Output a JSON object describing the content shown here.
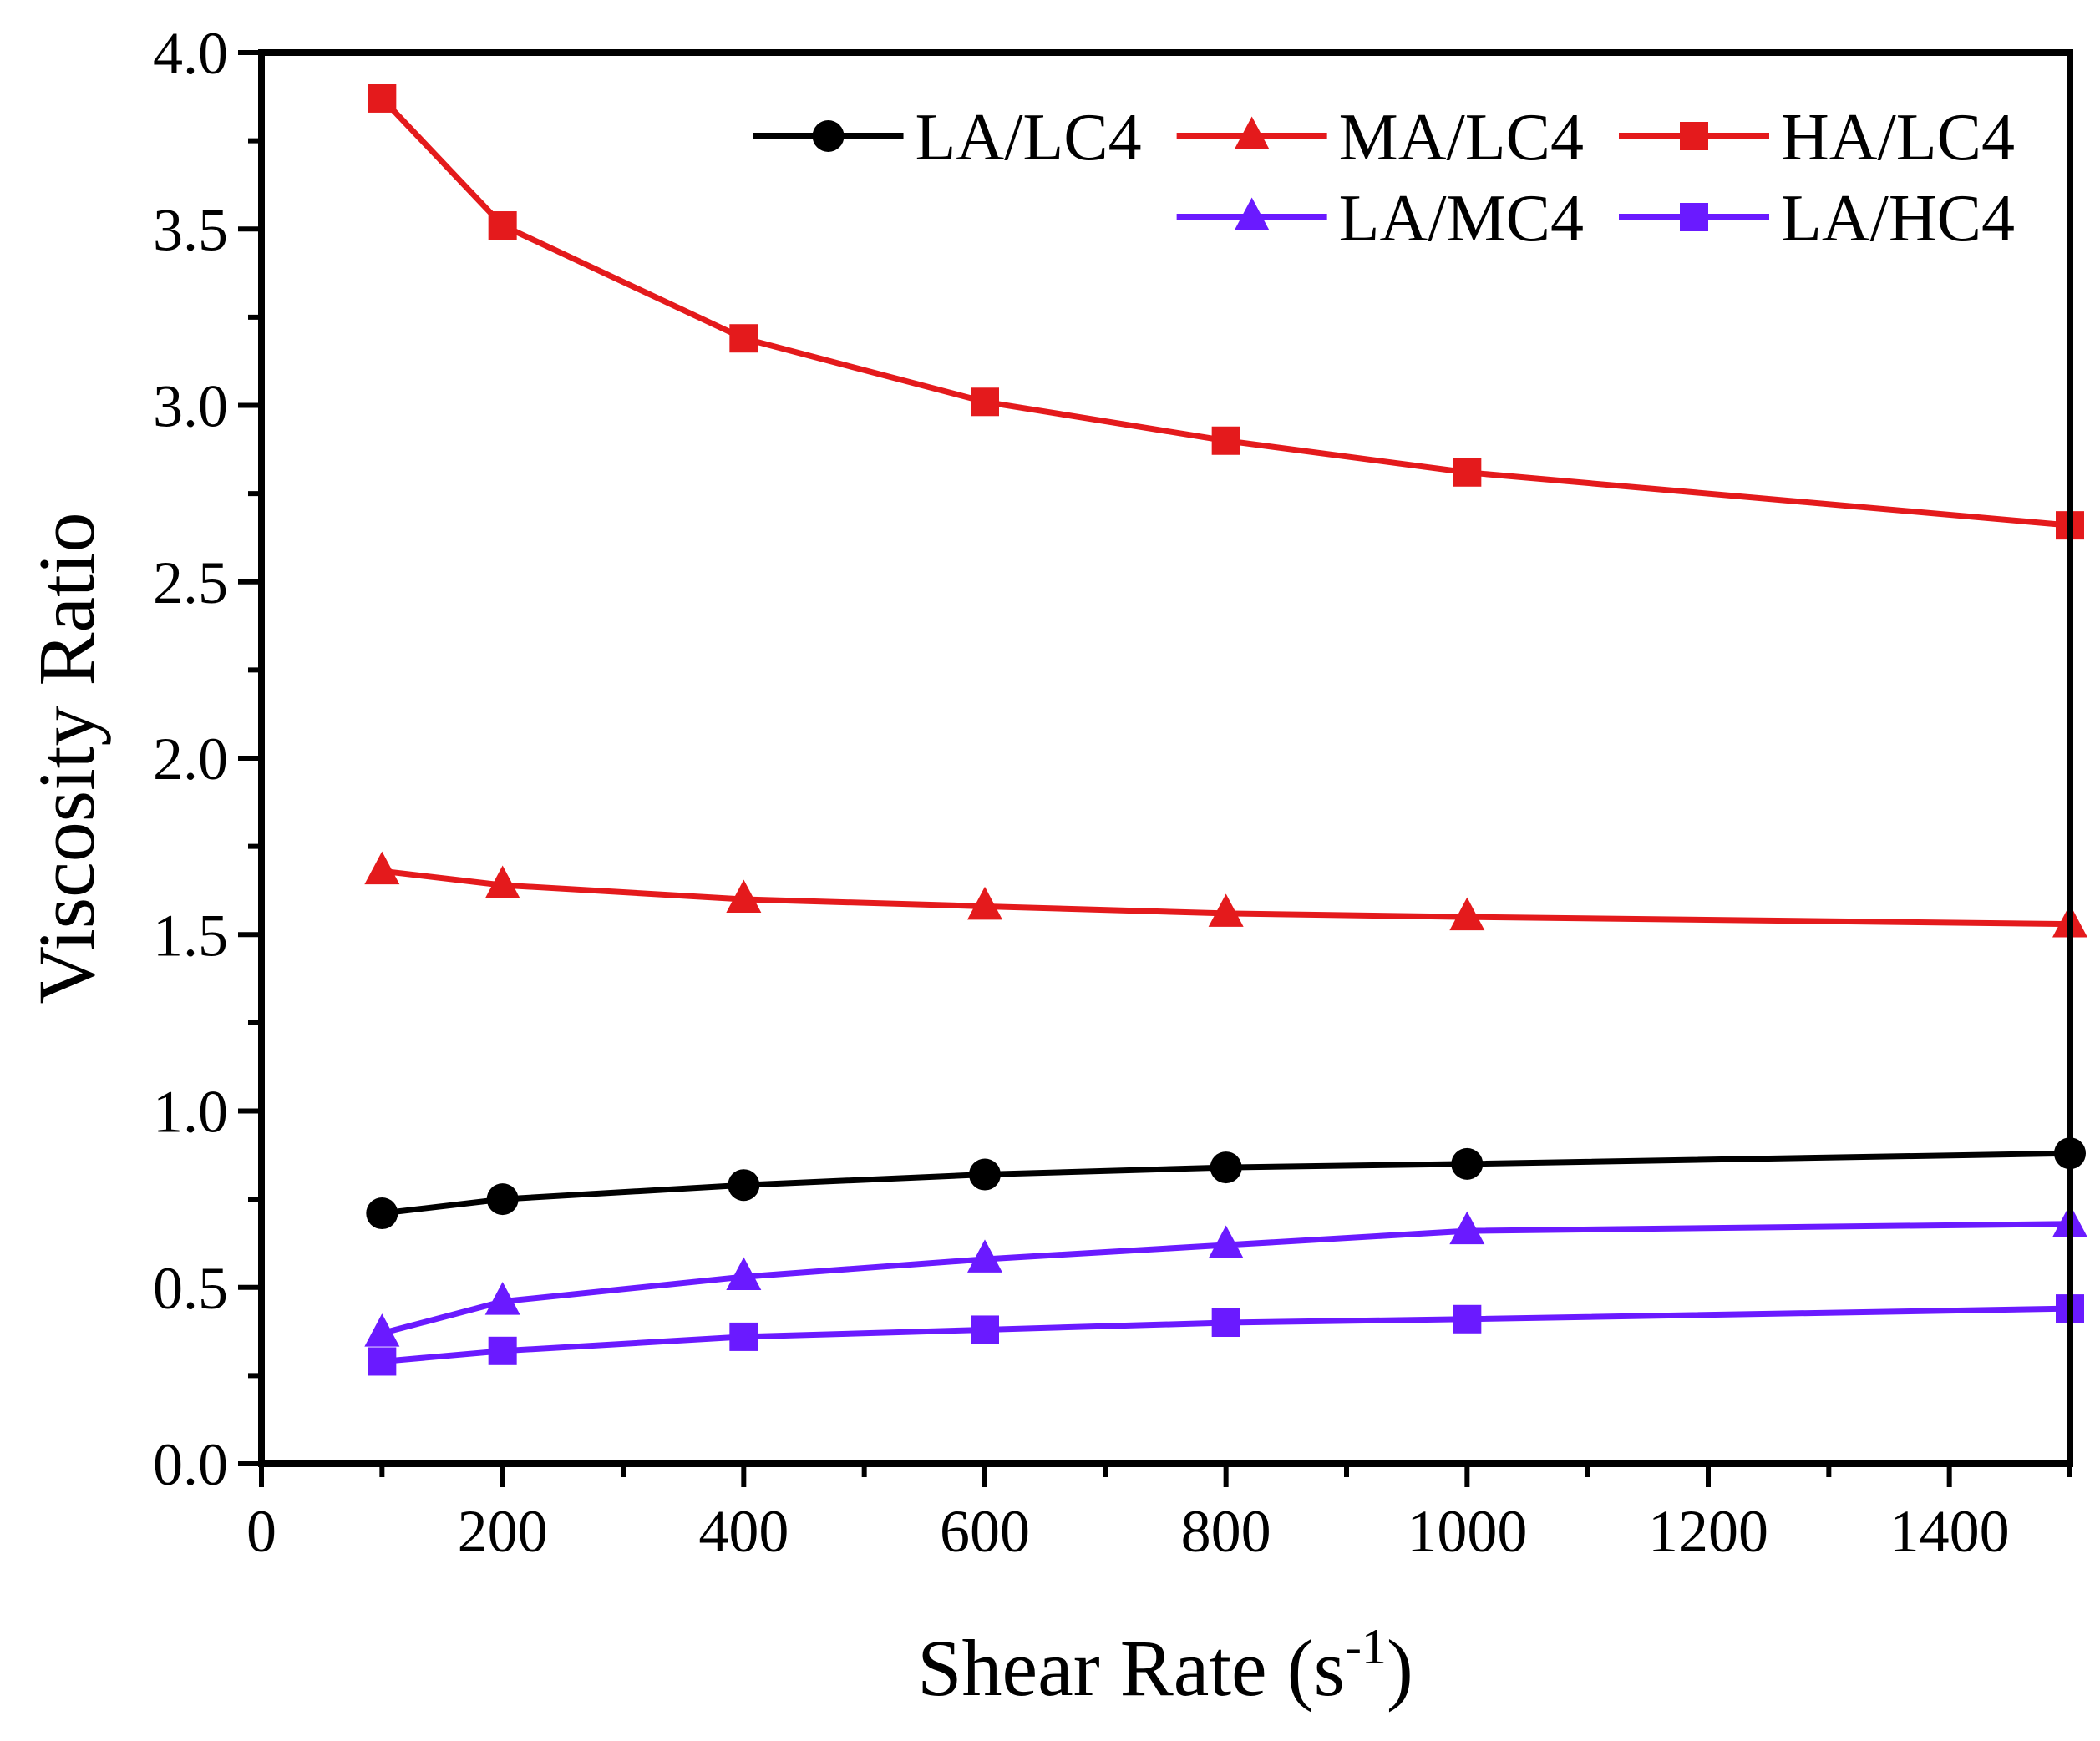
{
  "chart_data": {
    "type": "line",
    "title": "",
    "xlabel": "Shear Rate (s",
    "xlabel_sup": "-1",
    "xlabel_close": ")",
    "ylabel": "Viscosity Ratio",
    "xlim": [
      0,
      1500
    ],
    "ylim": [
      0.0,
      4.0
    ],
    "x_major_ticks": [
      0,
      200,
      400,
      600,
      800,
      1000,
      1200,
      1400
    ],
    "x_tick_labels": [
      "0",
      "200",
      "400",
      "600",
      "800",
      "1000",
      "1200",
      "1400"
    ],
    "x_minor_ticks": [
      100,
      300,
      500,
      700,
      900,
      1100,
      1300,
      1500
    ],
    "y_major_ticks": [
      0.0,
      0.5,
      1.0,
      1.5,
      2.0,
      2.5,
      3.0,
      3.5,
      4.0
    ],
    "y_tick_labels": [
      "0.0",
      "0.5",
      "1.0",
      "1.5",
      "2.0",
      "2.5",
      "3.0",
      "3.5",
      "4.0"
    ],
    "y_minor_ticks": [
      0.25,
      0.75,
      1.25,
      1.75,
      2.25,
      2.75,
      3.25,
      3.75
    ],
    "grid": false,
    "legend_position": "top-right",
    "x": [
      100,
      200,
      400,
      600,
      800,
      1000,
      1500
    ],
    "series": [
      {
        "name": "LA/LC4",
        "color": "#000000",
        "marker": "circle",
        "values": [
          0.71,
          0.75,
          0.79,
          0.82,
          0.84,
          0.85,
          0.88
        ]
      },
      {
        "name": "MA/LC4",
        "color": "#e41a1c",
        "marker": "triangle",
        "values": [
          1.68,
          1.64,
          1.6,
          1.58,
          1.56,
          1.55,
          1.53
        ]
      },
      {
        "name": "HA/LC4",
        "color": "#e41a1c",
        "marker": "square",
        "values": [
          3.87,
          3.51,
          3.19,
          3.01,
          2.9,
          2.81,
          2.66
        ]
      },
      {
        "name": "LA/MC4",
        "color": "#6a1aff",
        "marker": "triangle",
        "values": [
          0.37,
          0.46,
          0.53,
          0.58,
          0.62,
          0.66,
          0.68
        ]
      },
      {
        "name": "LA/HC4",
        "color": "#6a1aff",
        "marker": "square",
        "values": [
          0.29,
          0.32,
          0.36,
          0.38,
          0.4,
          0.41,
          0.44
        ]
      }
    ]
  }
}
